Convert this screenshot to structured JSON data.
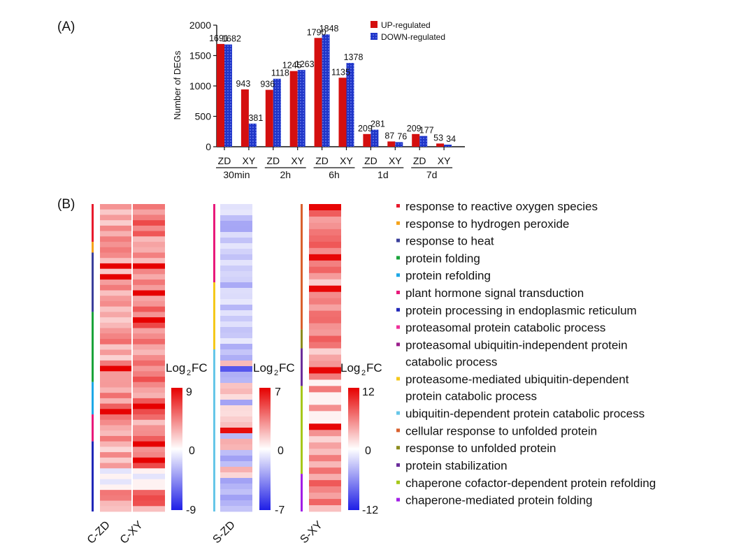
{
  "panel_labels": {
    "a": "(A)",
    "b": "(B)"
  },
  "chart_data": [
    {
      "type": "bar",
      "ylabel": "Number of DEGs",
      "ylim": [
        0,
        2000
      ],
      "yticks": [
        0,
        500,
        1000,
        1500,
        2000
      ],
      "grid": false,
      "legend_position": "top-right",
      "series": [
        {
          "name": "UP-regulated",
          "color": "#d40f0f",
          "pattern": "solid"
        },
        {
          "name": "DOWN-regulated",
          "color": "#1f35c8",
          "pattern": "dotted"
        }
      ],
      "categories": [
        {
          "label": "ZD",
          "group": "30min",
          "up": 1691,
          "down": 1682
        },
        {
          "label": "XY",
          "group": "30min",
          "up": 943,
          "down": 381
        },
        {
          "label": "ZD",
          "group": "2h",
          "up": 936,
          "down": 1118
        },
        {
          "label": "XY",
          "group": "2h",
          "up": 1245,
          "down": 1263
        },
        {
          "label": "ZD",
          "group": "6h",
          "up": 1790,
          "down": 1848
        },
        {
          "label": "XY",
          "group": "6h",
          "up": 1135,
          "down": 1378
        },
        {
          "label": "ZD",
          "group": "1d",
          "up": 209,
          "down": 281
        },
        {
          "label": "XY",
          "group": "1d",
          "up": 87,
          "down": 76
        },
        {
          "label": "ZD",
          "group": "7d",
          "up": 209,
          "down": 177
        },
        {
          "label": "XY",
          "group": "7d",
          "up": 53,
          "down": 34
        }
      ],
      "groups": [
        "30min",
        "2h",
        "6h",
        "1d",
        "7d"
      ]
    },
    {
      "type": "heatmap",
      "colorbar_label": "Log2FC",
      "low_color": "#1e1ee6",
      "mid_color": "#ffffff",
      "high_color": "#e60000",
      "heatmaps": [
        {
          "columns": [
            "C-ZD",
            "C-XY"
          ],
          "scale": {
            "max": "9",
            "mid": "0",
            "min": "-9"
          },
          "categories": [
            {
              "color": "#e8192c",
              "rows": 7
            },
            {
              "color": "#f5a31a",
              "rows": 2
            },
            {
              "color": "#3a3f9b",
              "rows": 11
            },
            {
              "color": "#1aa33a",
              "rows": 13
            },
            {
              "color": "#1ea8e6",
              "rows": 6
            },
            {
              "color": "#e8197a",
              "rows": 5
            },
            {
              "color": "#2027b8",
              "rows": 13
            }
          ]
        },
        {
          "columns": [
            "S-ZD"
          ],
          "scale": {
            "max": "7",
            "mid": "0",
            "min": "-7"
          },
          "categories": [
            {
              "color": "#e8197a",
              "rows": 14
            },
            {
              "color": "#f5c81a",
              "rows": 12
            },
            {
              "color": "#66c6e8",
              "rows": 29
            }
          ]
        },
        {
          "columns": [
            "S-XY"
          ],
          "scale": {
            "max": "12",
            "mid": "0",
            "min": "-12"
          },
          "categories": [
            {
              "color": "#d9602e",
              "rows": 20
            },
            {
              "color": "#8c8c1e",
              "rows": 3
            },
            {
              "color": "#6b2e9b",
              "rows": 6
            },
            {
              "color": "#a6c81a",
              "rows": 14
            },
            {
              "color": "#a21ee6",
              "rows": 6
            }
          ]
        }
      ],
      "legend": [
        {
          "color": "#e8192c",
          "lines": [
            "response to reactive oxygen species"
          ]
        },
        {
          "color": "#f5a31a",
          "lines": [
            "response to hydrogen peroxide"
          ]
        },
        {
          "color": "#3a3f9b",
          "lines": [
            "response to heat"
          ]
        },
        {
          "color": "#1aa33a",
          "lines": [
            "protein folding"
          ]
        },
        {
          "color": "#1ea8e6",
          "lines": [
            "protein refolding"
          ]
        },
        {
          "color": "#e8197a",
          "lines": [
            "plant hormone signal transduction"
          ]
        },
        {
          "color": "#2027b8",
          "lines": [
            "protein processing in endoplasmic reticulum"
          ]
        },
        {
          "color": "#ef2f9a",
          "lines": [
            "proteasomal protein catabolic process"
          ]
        },
        {
          "color": "#9b1e8c",
          "lines": [
            "proteasomal ubiquitin-independent protein",
            "catabolic process"
          ]
        },
        {
          "color": "#f5c81a",
          "lines": [
            "proteasome-mediated ubiquitin-dependent",
            "protein catabolic process"
          ]
        },
        {
          "color": "#66c6e8",
          "lines": [
            "ubiquitin-dependent protein catabolic process"
          ]
        },
        {
          "color": "#d9602e",
          "lines": [
            "cellular response to unfolded protein"
          ]
        },
        {
          "color": "#8c8c1e",
          "lines": [
            "response to unfolded protein"
          ]
        },
        {
          "color": "#6b2e9b",
          "lines": [
            "protein stabilization"
          ]
        },
        {
          "color": "#a6c81a",
          "lines": [
            "chaperone cofactor-dependent protein refolding"
          ]
        },
        {
          "color": "#a21ee6",
          "lines": [
            "chaperone-mediated protein folding"
          ]
        }
      ]
    }
  ]
}
